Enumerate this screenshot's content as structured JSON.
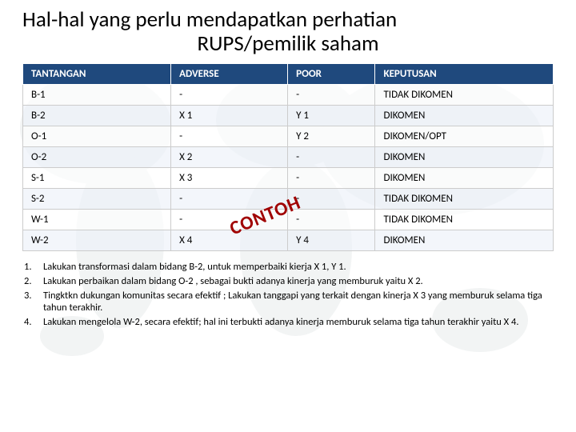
{
  "title": {
    "line1": "Hal-hal yang perlu mendapatkan perhatian",
    "line2": "RUPS/pemilik saham"
  },
  "table": {
    "headers": [
      "TANTANGAN",
      "ADVERSE",
      "POOR",
      "KEPUTUSAN"
    ],
    "header_bg": "#1f497d",
    "header_fg": "#ffffff",
    "row_border": "#cccccc",
    "rows": [
      [
        "B-1",
        "-",
        "-",
        "TIDAK DIKOMEN"
      ],
      [
        "B-2",
        "X 1",
        "Y 1",
        "DIKOMEN"
      ],
      [
        "O-1",
        "-",
        "Y 2",
        "DIKOMEN/OPT"
      ],
      [
        "O-2",
        "X 2",
        "-",
        "DIKOMEN"
      ],
      [
        "S-1",
        "X 3",
        "-",
        "DIKOMEN"
      ],
      [
        "S-2",
        "-",
        "-",
        "TIDAK DIKOMEN"
      ],
      [
        "W-1",
        "-",
        "-",
        "TIDAK DIKOMEN"
      ],
      [
        "W-2",
        "X 4",
        "Y 4",
        "DIKOMEN"
      ]
    ]
  },
  "watermark": {
    "text": "CONTOH",
    "color": "#a00000",
    "rotation_deg": -22
  },
  "notes": [
    {
      "n": "1.",
      "t": "Lakukan transformasi dalam bidang B-2, untuk memperbaiki kierja X 1, Y 1."
    },
    {
      "n": "2.",
      "t": "Lakukan perbaikan dalam bidang O-2 ,  sebagai bukti adanya kinerja yang memburuk  yaitu X 2."
    },
    {
      "n": "3.",
      "t": "Tingktkn dukungan komunitas secara efektif ; Lakukan tanggapi yang terkait dengan kinerja  X 3 yang memburuk selama tiga tahun terakhir."
    },
    {
      "n": "4.",
      "t": " Lakukan mengelola W-2, secara efektif;  hal ini terbukti adanya kinerja memburuk selama tiga tahun terakhir yaitu X 4."
    }
  ],
  "bg": {
    "map_fill": "#9aa7ad"
  }
}
